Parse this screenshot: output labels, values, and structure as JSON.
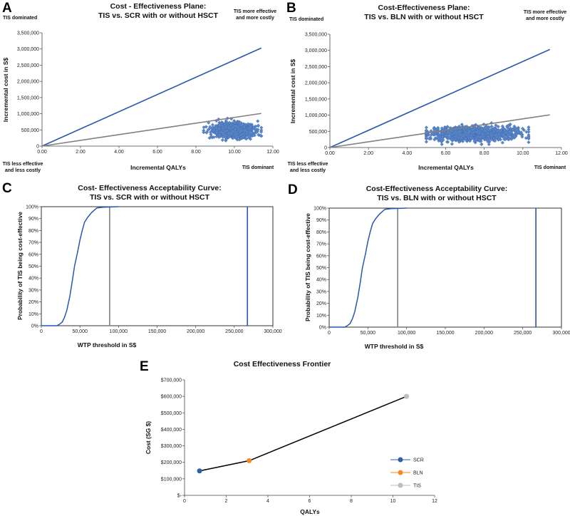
{
  "chart_data": [
    {
      "id": "A",
      "type": "scatter",
      "panel_label": "A",
      "title": [
        "Cost - Effectiveness Plane:",
        "TIS vs. SCR with or without HSCT"
      ],
      "xlabel": "Incremental QALYs",
      "ylabel": "Incremental cost in S$",
      "xlim": [
        0,
        12
      ],
      "ylim": [
        0,
        3500000
      ],
      "xticks": [
        "0.00",
        "2.00",
        "4.00",
        "6.00",
        "8.00",
        "10.00",
        "12.00"
      ],
      "yticks": [
        "0",
        "500,000",
        "1,000,000",
        "1,500,000",
        "2,000,000",
        "2,500,000",
        "3,000,000",
        "3,500,000"
      ],
      "corners": {
        "top_left": [
          "TIS dominated"
        ],
        "top_right": [
          "TIS more effective",
          "and more costly"
        ],
        "bottom_left": [
          "TIS less effective",
          "and less costly"
        ],
        "bottom_right": [
          "TIS dominant"
        ]
      },
      "threshold_lines": [
        {
          "name": "high WTP threshold",
          "color": "#2a56b0",
          "x": [
            0,
            11.4
          ],
          "y": [
            0,
            3030000
          ]
        },
        {
          "name": "low WTP threshold",
          "color": "#808080",
          "x": [
            0,
            11.4
          ],
          "y": [
            0,
            1010000
          ]
        }
      ],
      "cloud": {
        "x_mean": 10.0,
        "x_sd": 0.55,
        "x_range": [
          8.4,
          11.4
        ],
        "y_mean": 480000,
        "y_sd": 110000,
        "y_range": [
          170000,
          950000
        ],
        "count": 900,
        "color": "#5b86c8"
      }
    },
    {
      "id": "B",
      "type": "scatter",
      "panel_label": "B",
      "title": [
        "Cost-Effectiveness Plane:",
        "TIS vs. BLN with or without HSCT"
      ],
      "xlabel": "Incremental QALYs",
      "ylabel": "Incremental cost in S$",
      "xlim": [
        0,
        12
      ],
      "ylim": [
        0,
        3500000
      ],
      "xticks": [
        "0.00",
        "2.00",
        "4.00",
        "6.00",
        "8.00",
        "10.00",
        "12.00"
      ],
      "yticks": [
        "0",
        "500,000",
        "1,000,000",
        "1,500,000",
        "2,000,000",
        "2,500,000",
        "3,000,000",
        "3,500,000"
      ],
      "corners": {
        "top_left": [
          "TIS dominated"
        ],
        "top_right": [
          "TIS more effective",
          "and more costly"
        ],
        "bottom_left": [
          "TIS less effective",
          "and less costly"
        ],
        "bottom_right": [
          "TIS dominant"
        ]
      },
      "threshold_lines": [
        {
          "name": "high WTP threshold",
          "color": "#2a56b0",
          "x": [
            0,
            11.4
          ],
          "y": [
            0,
            3030000
          ]
        },
        {
          "name": "low WTP threshold",
          "color": "#808080",
          "x": [
            0,
            11.4
          ],
          "y": [
            0,
            1010000
          ]
        }
      ],
      "cloud": {
        "x_mean": 7.5,
        "x_sd": 1.2,
        "x_range": [
          5.0,
          10.3
        ],
        "y_mean": 420000,
        "y_sd": 110000,
        "y_range": [
          100000,
          930000
        ],
        "count": 1000,
        "color": "#5b86c8"
      }
    },
    {
      "id": "C",
      "type": "line",
      "panel_label": "C",
      "title": [
        "Cost- Effectiveness Acceptability Curve:",
        "TIS vs. SCR with or without HSCT"
      ],
      "xlabel": "WTP threshold in S$",
      "ylabel": "Probability of TIS being cost-effective",
      "xlim": [
        0,
        300000
      ],
      "ylim": [
        0,
        100
      ],
      "xticks": [
        "0",
        "50,000",
        "100,000",
        "150,000",
        "200,000",
        "250,000",
        "300,000"
      ],
      "yticks": [
        "0%",
        "10%",
        "20%",
        "30%",
        "40%",
        "50%",
        "60%",
        "70%",
        "80%",
        "90%",
        "100%"
      ],
      "series": [
        {
          "name": "CEAC",
          "color": "#2a56b0",
          "x": [
            0,
            20000,
            23000,
            27000,
            30000,
            33000,
            37000,
            40000,
            43000,
            47000,
            50000,
            53000,
            56000,
            60000,
            65000,
            72000,
            80000,
            100000
          ],
          "y": [
            0,
            0,
            1,
            3,
            7,
            13,
            25,
            37,
            50,
            62,
            72,
            80,
            87,
            91,
            95,
            99,
            99.5,
            100
          ]
        }
      ],
      "vlines": [
        {
          "name": "low WTP threshold",
          "x": 88500,
          "color": "#808080"
        },
        {
          "name": "high WTP threshold",
          "x": 267000,
          "color": "#2a56b0"
        }
      ]
    },
    {
      "id": "D",
      "type": "line",
      "panel_label": "D",
      "title": [
        "Cost-Effectiveness Acceptability Curve:",
        "TIS vs. BLN with or without HSCT"
      ],
      "xlabel": "WTP threshold in S$",
      "ylabel": "Probability of TIS being cost-effective",
      "xlim": [
        0,
        300000
      ],
      "ylim": [
        0,
        100
      ],
      "xticks": [
        "0",
        "50,000",
        "100,000",
        "150,000",
        "200,000",
        "250,000",
        "300,000"
      ],
      "yticks": [
        "0%",
        "10%",
        "20%",
        "30%",
        "40%",
        "50%",
        "60%",
        "70%",
        "80%",
        "90%",
        "100%"
      ],
      "series": [
        {
          "name": "CEAC",
          "color": "#2a56b0",
          "x": [
            0,
            20000,
            23000,
            27000,
            30000,
            33000,
            37000,
            40000,
            43000,
            47000,
            50000,
            53000,
            56000,
            60000,
            65000,
            72000,
            80000,
            100000
          ],
          "y": [
            0,
            0,
            1,
            3,
            7,
            13,
            25,
            37,
            50,
            62,
            72,
            80,
            87,
            91,
            95,
            99,
            99.5,
            100
          ]
        }
      ],
      "vlines": [
        {
          "name": "low WTP threshold",
          "x": 88500,
          "color": "#808080"
        },
        {
          "name": "high WTP threshold",
          "x": 267000,
          "color": "#2a56b0"
        }
      ]
    },
    {
      "id": "E",
      "type": "line",
      "panel_label": "E",
      "title": [
        "Cost Effectiveness Frontier"
      ],
      "xlabel": "QALYs",
      "ylabel": "Cost (SG $)",
      "xlim": [
        0,
        12
      ],
      "ylim": [
        0,
        700000
      ],
      "xticks": [
        "0",
        "2",
        "4",
        "6",
        "8",
        "10",
        "12"
      ],
      "yticks": [
        "$-",
        "$100,000",
        "$200,000",
        "$300,000",
        "$400,000",
        "$500,000",
        "$600,000",
        "$700,000"
      ],
      "frontier_color": "#000000",
      "points": [
        {
          "name": "SCR",
          "x": 0.72,
          "y": 148000,
          "color": "#2f5ea8"
        },
        {
          "name": "BLN",
          "x": 3.1,
          "y": 210000,
          "color": "#f28a1e"
        },
        {
          "name": "TIS",
          "x": 10.65,
          "y": 600000,
          "color": "#bdbdbd"
        }
      ],
      "legend": "right-bottom"
    }
  ]
}
